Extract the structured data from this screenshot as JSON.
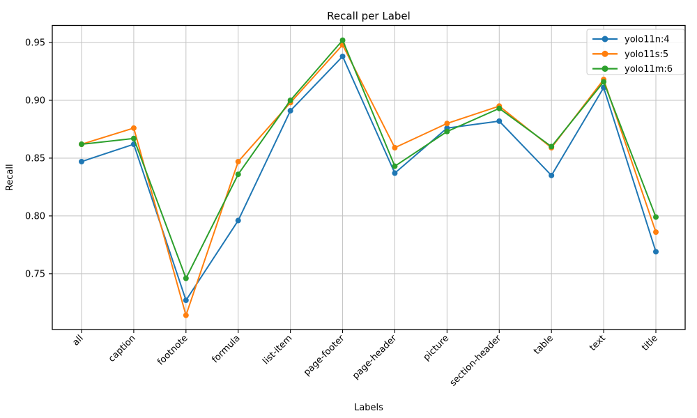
{
  "chart_data": {
    "type": "line",
    "title": "Recall per Label",
    "xlabel": "Labels",
    "ylabel": "Recall",
    "categories": [
      "all",
      "caption",
      "footnote",
      "formula",
      "list-item",
      "page-footer",
      "page-header",
      "picture",
      "section-header",
      "table",
      "text",
      "title"
    ],
    "series": [
      {
        "name": "yolo11n:4",
        "color": "#1f77b4",
        "values": [
          0.847,
          0.862,
          0.727,
          0.796,
          0.891,
          0.938,
          0.837,
          0.876,
          0.882,
          0.835,
          0.911,
          0.769
        ]
      },
      {
        "name": "yolo11s:5",
        "color": "#ff7f0e",
        "values": [
          0.862,
          0.876,
          0.714,
          0.847,
          0.898,
          0.948,
          0.859,
          0.88,
          0.895,
          0.859,
          0.918,
          0.786
        ]
      },
      {
        "name": "yolo11m:6",
        "color": "#2ca02c",
        "values": [
          0.862,
          0.867,
          0.746,
          0.836,
          0.9,
          0.952,
          0.843,
          0.873,
          0.893,
          0.86,
          0.916,
          0.799
        ]
      }
    ],
    "ylim": [
      0.7017,
      0.9648
    ],
    "yticks": [
      0.75,
      0.8,
      0.85,
      0.9,
      0.95
    ],
    "ytick_labels": [
      "0.75",
      "0.80",
      "0.85",
      "0.90",
      "0.95"
    ],
    "xtick_rotation_deg": 45,
    "grid": true,
    "legend_position": "upper right",
    "colors": {
      "background": "#ffffff",
      "grid": "#c3c3c3",
      "spine": "#000000",
      "text": "#000000",
      "legend_border": "#cccccc",
      "legend_fill": "#ffffff"
    }
  }
}
